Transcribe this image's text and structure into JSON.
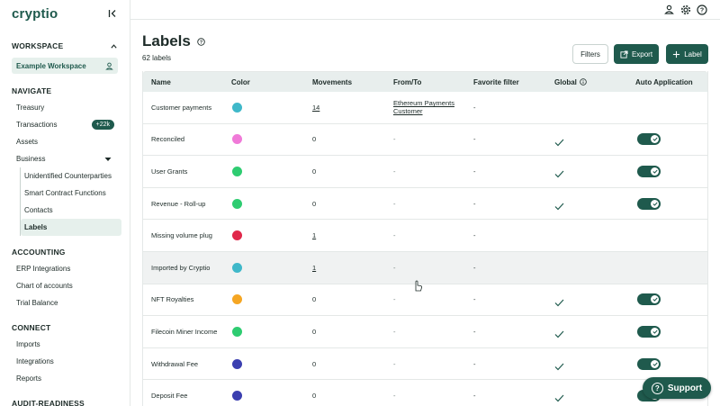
{
  "app": {
    "logo": "cryptio"
  },
  "sidebar": {
    "workspace_heading": "WORKSPACE",
    "workspace_name": "Example Workspace",
    "navigate_heading": "NAVIGATE",
    "navigate": [
      {
        "label": "Treasury"
      },
      {
        "label": "Transactions",
        "badge": "+22k"
      },
      {
        "label": "Assets"
      },
      {
        "label": "Business"
      }
    ],
    "business_sub": [
      {
        "label": "Unidentified Counterparties"
      },
      {
        "label": "Smart Contract Functions"
      },
      {
        "label": "Contacts"
      },
      {
        "label": "Labels",
        "active": true
      }
    ],
    "accounting_heading": "ACCOUNTING",
    "accounting": [
      {
        "label": "ERP Integrations"
      },
      {
        "label": "Chart of accounts"
      },
      {
        "label": "Trial Balance"
      }
    ],
    "connect_heading": "CONNECT",
    "connect": [
      {
        "label": "Imports"
      },
      {
        "label": "Integrations"
      },
      {
        "label": "Reports"
      }
    ],
    "audit_heading": "AUDIT-READINESS"
  },
  "page": {
    "title": "Labels",
    "count": "62 labels",
    "filters_label": "Filters",
    "export_label": "Export",
    "add_label": "Label"
  },
  "table": {
    "headers": {
      "name": "Name",
      "color": "Color",
      "movements": "Movements",
      "from_to": "From/To",
      "favorite": "Favorite filter",
      "global": "Global",
      "auto": "Auto Application"
    },
    "rows": [
      {
        "name": "Customer payments",
        "color": "#3fb8c9",
        "movements": "14",
        "movements_link": true,
        "from_to_1": "Ethereum Payments",
        "from_to_2": "Customer",
        "favorite": "-",
        "global": false,
        "auto": false
      },
      {
        "name": "Reconciled",
        "color": "#f07ad8",
        "movements": "0",
        "movements_link": false,
        "from_to_1": "-",
        "from_to_2": "",
        "favorite": "-",
        "global": true,
        "auto": true
      },
      {
        "name": "User Grants",
        "color": "#2ecc71",
        "movements": "0",
        "movements_link": false,
        "from_to_1": "-",
        "from_to_2": "",
        "favorite": "-",
        "global": true,
        "auto": true
      },
      {
        "name": "Revenue - Roll-up",
        "color": "#2ecc71",
        "movements": "0",
        "movements_link": false,
        "from_to_1": "-",
        "from_to_2": "",
        "favorite": "-",
        "global": true,
        "auto": true
      },
      {
        "name": "Missing volume plug",
        "color": "#e0284a",
        "movements": "1",
        "movements_link": true,
        "from_to_1": "-",
        "from_to_2": "",
        "favorite": "-",
        "global": false,
        "auto": false
      },
      {
        "name": "Imported by Cryptio",
        "color": "#3fb8c9",
        "movements": "1",
        "movements_link": true,
        "from_to_1": "-",
        "from_to_2": "",
        "favorite": "-",
        "global": false,
        "auto": false,
        "hover": true
      },
      {
        "name": "NFT Royalties",
        "color": "#f5a623",
        "movements": "0",
        "movements_link": false,
        "from_to_1": "-",
        "from_to_2": "",
        "favorite": "-",
        "global": true,
        "auto": true
      },
      {
        "name": "Filecoin Miner Income",
        "color": "#2ecc71",
        "movements": "0",
        "movements_link": false,
        "from_to_1": "-",
        "from_to_2": "",
        "favorite": "-",
        "global": true,
        "auto": true
      },
      {
        "name": "Withdrawal Fee",
        "color": "#3b3fb0",
        "movements": "0",
        "movements_link": false,
        "from_to_1": "-",
        "from_to_2": "",
        "favorite": "-",
        "global": true,
        "auto": true
      },
      {
        "name": "Deposit Fee",
        "color": "#3b3fb0",
        "movements": "0",
        "movements_link": false,
        "from_to_1": "-",
        "from_to_2": "",
        "favorite": "-",
        "global": true,
        "auto": true
      }
    ]
  },
  "support": {
    "label": "Support"
  },
  "colors": {
    "brand": "#1f5a4d",
    "header_bg": "#e8eeed"
  }
}
